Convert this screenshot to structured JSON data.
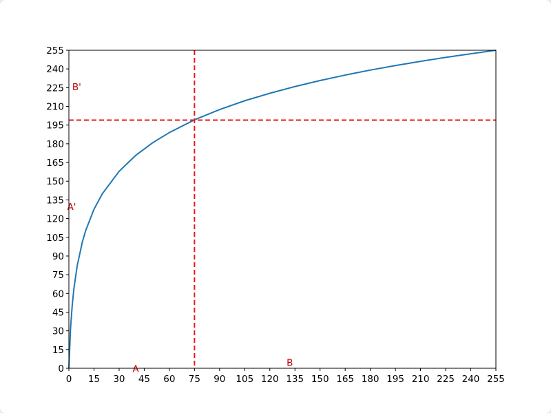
{
  "chart_data": {
    "type": "line",
    "x": [
      0,
      1,
      2,
      3,
      5,
      8,
      10,
      15,
      20,
      30,
      40,
      50,
      60,
      75,
      90,
      105,
      120,
      135,
      150,
      165,
      180,
      195,
      210,
      225,
      240,
      255
    ],
    "series": [
      {
        "color": "#1f77b4",
        "values": [
          0,
          31.9,
          50.5,
          63.8,
          82.4,
          101.0,
          110.3,
          127.5,
          140.0,
          157.9,
          170.8,
          180.8,
          189.0,
          199.2,
          207.4,
          214.5,
          220.5,
          225.9,
          230.7,
          235.1,
          239.1,
          242.7,
          246.1,
          249.3,
          252.2,
          255
        ]
      }
    ],
    "xlim": [
      0,
      255
    ],
    "ylim": [
      0,
      255
    ],
    "xticks": [
      0,
      15,
      30,
      45,
      60,
      75,
      90,
      105,
      120,
      135,
      150,
      165,
      180,
      195,
      210,
      225,
      240,
      255
    ],
    "yticks": [
      0,
      15,
      30,
      45,
      60,
      75,
      90,
      105,
      120,
      135,
      150,
      165,
      180,
      195,
      210,
      225,
      240,
      255
    ],
    "reference_lines": {
      "x": 75,
      "y": 199,
      "color": "#e8191c"
    },
    "annotations": [
      {
        "text": "A",
        "x": 38,
        "y": -3
      },
      {
        "text": "A'",
        "x": -1,
        "y": 127
      },
      {
        "text": "B",
        "x": 130,
        "y": 2
      },
      {
        "text": "B'",
        "x": 2,
        "y": 223
      }
    ],
    "annotation_color": "#c00000"
  }
}
